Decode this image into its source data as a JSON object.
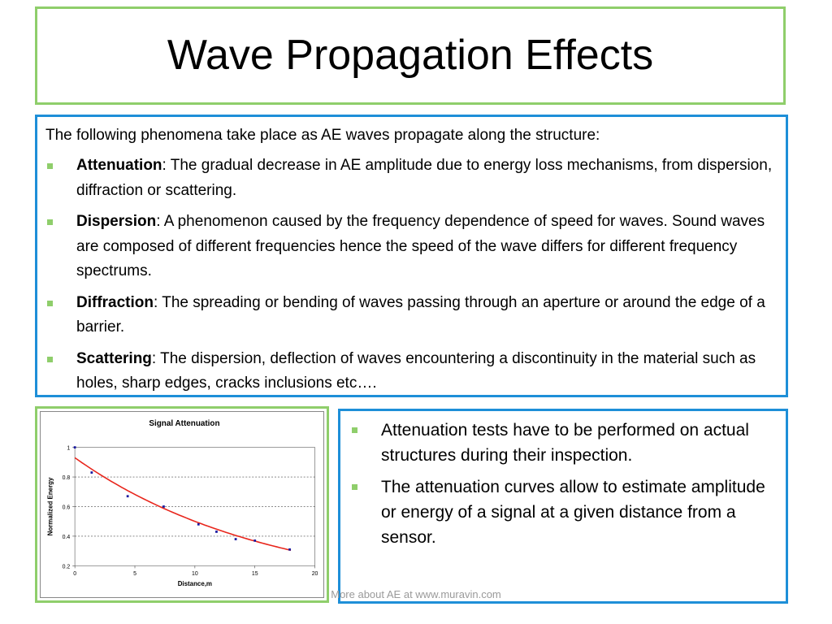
{
  "title": "Wave Propagation Effects",
  "intro": "The following phenomena take place as AE waves propagate along the structure:",
  "phenomena": [
    {
      "term": "Attenuation",
      "text": ": The gradual decrease in AE amplitude due to energy loss mechanisms, from dispersion, diffraction or scattering."
    },
    {
      "term": "Dispersion",
      "text": ": A phenomenon caused by the frequency dependence of speed for waves. Sound waves are composed of different frequencies hence the speed of the wave differs for different frequency spectrums."
    },
    {
      "term": "Diffraction",
      "text": ": The spreading or bending of waves passing through an aperture or around the edge of a barrier."
    },
    {
      "term": "Scattering",
      "text": ": The dispersion, deflection of waves encountering a discontinuity in the material such as holes, sharp edges, cracks inclusions etc…."
    }
  ],
  "notes": [
    "Attenuation tests have to be performed on actual structures during their inspection.",
    "The attenuation curves allow to estimate amplitude or energy of a signal at a given distance from a sensor."
  ],
  "footer": "More about AE at www.muravin.com",
  "colors": {
    "green_border": "#8fce6b",
    "blue_border": "#1e8fd8",
    "curve": "#e8251b",
    "points": "#1a1aa0"
  },
  "chart_data": {
    "type": "scatter",
    "title": "Signal Attenuation",
    "xlabel": "Distance,m",
    "ylabel": "Normalized Energy",
    "xlim": [
      0,
      20
    ],
    "ylim": [
      0.2,
      1
    ],
    "xticks": [
      "0",
      "5",
      "10",
      "15",
      "20"
    ],
    "yticks": [
      "0.2",
      "0.4",
      "0.6",
      "0.8",
      "1"
    ],
    "grid": "horizontal dashed",
    "points": [
      {
        "x": 0,
        "y": 1.0
      },
      {
        "x": 1.4,
        "y": 0.83
      },
      {
        "x": 4.4,
        "y": 0.67
      },
      {
        "x": 7.4,
        "y": 0.6
      },
      {
        "x": 10.3,
        "y": 0.48
      },
      {
        "x": 11.8,
        "y": 0.43
      },
      {
        "x": 13.4,
        "y": 0.38
      },
      {
        "x": 15,
        "y": 0.37
      },
      {
        "x": 17.9,
        "y": 0.31
      }
    ],
    "trendline": {
      "type": "exponential",
      "color": "#e8251b",
      "a": 0.93,
      "b": -0.062
    }
  }
}
